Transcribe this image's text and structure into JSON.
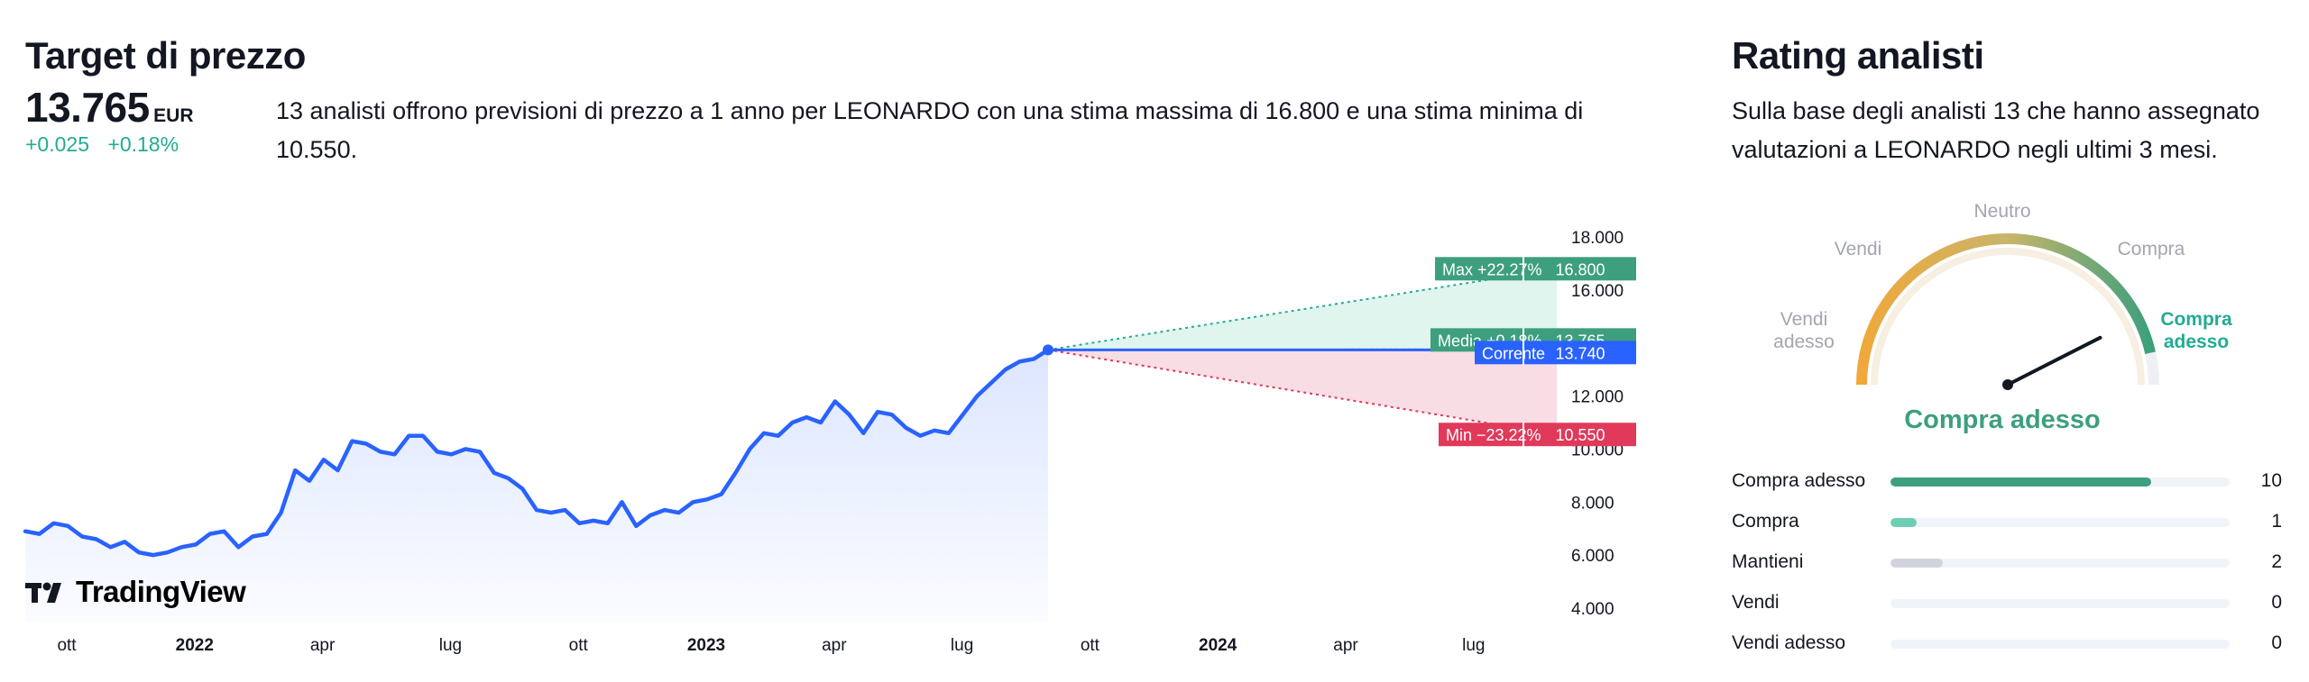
{
  "colors": {
    "green": "#22ab94",
    "green_dark": "#3d9f7d",
    "blue": "#2962ff",
    "red": "#e0395a",
    "grey": "#d1d4dc",
    "track": "#f0f3fa"
  },
  "target": {
    "title": "Target di prezzo",
    "price": "13.765",
    "currency": "EUR",
    "change_abs": "+0.025",
    "change_pct": "+0.18%",
    "description": "13 analisti offrono previsioni di prezzo a 1 anno per LEONARDO con una stima massima di 16.800 e una stima minima di 10.550."
  },
  "chart_data": {
    "type": "line",
    "y_range": [
      4.0,
      18.0
    ],
    "y_ticks": [
      "18.000",
      "16.000",
      "14.000",
      "12.000",
      "10.000",
      "8.000",
      "6.000",
      "4.000"
    ],
    "x_ticks": [
      {
        "label": "ott",
        "bold": false
      },
      {
        "label": "2022",
        "bold": true
      },
      {
        "label": "apr",
        "bold": false
      },
      {
        "label": "lug",
        "bold": false
      },
      {
        "label": "ott",
        "bold": false
      },
      {
        "label": "2023",
        "bold": true
      },
      {
        "label": "apr",
        "bold": false
      },
      {
        "label": "lug",
        "bold": false
      },
      {
        "label": "ott",
        "bold": false
      },
      {
        "label": "2024",
        "bold": true
      },
      {
        "label": "apr",
        "bold": false
      },
      {
        "label": "lug",
        "bold": false
      }
    ],
    "history_start": "2021-09",
    "history_end": "2023-09",
    "price_history": [
      6.9,
      6.8,
      7.2,
      7.1,
      6.7,
      6.6,
      6.3,
      6.5,
      6.1,
      6.0,
      6.1,
      6.3,
      6.4,
      6.8,
      6.9,
      6.3,
      6.7,
      6.8,
      7.6,
      9.2,
      8.8,
      9.6,
      9.2,
      10.3,
      10.2,
      9.9,
      9.8,
      10.5,
      10.5,
      9.9,
      9.8,
      10.0,
      9.9,
      9.1,
      8.9,
      8.5,
      7.7,
      7.6,
      7.7,
      7.2,
      7.3,
      7.2,
      8.0,
      7.1,
      7.5,
      7.7,
      7.6,
      8.0,
      8.1,
      8.3,
      9.1,
      10.0,
      10.6,
      10.5,
      11.0,
      11.2,
      11.0,
      11.8,
      11.3,
      10.6,
      11.4,
      11.3,
      10.8,
      10.5,
      10.7,
      10.6,
      11.3,
      12.0,
      12.5,
      13.0,
      13.3,
      13.4,
      13.74
    ],
    "current": 13.74,
    "max": 16.8,
    "avg": 13.765,
    "min": 10.55,
    "labels": {
      "max_text": "Max +22.27%",
      "max_value": "16.800",
      "avg_text": "Media +0.18%",
      "avg_value": "13.765",
      "cur_text": "Corrente",
      "cur_value": "13.740",
      "min_text": "Min −23.22%",
      "min_value": "10.550"
    }
  },
  "tradingview": {
    "logo_text": "TradingView"
  },
  "ratings": {
    "title": "Rating analisti",
    "description": "Sulla base degli analisti 13 che hanno assegnato valutazioni a LEONARDO negli ultimi 3 mesi.",
    "gauge_labels": {
      "strong_sell": "Vendi adesso",
      "sell": "Vendi",
      "neutral": "Neutro",
      "buy": "Compra",
      "strong_buy": "Compra adesso"
    },
    "needle_value": 0.85,
    "verdict": "Compra adesso",
    "items": [
      {
        "label": "Compra adesso",
        "count": "10",
        "fraction": 0.769,
        "color": "#3d9f7d"
      },
      {
        "label": "Compra",
        "count": "1",
        "fraction": 0.077,
        "color": "#6ccfb4"
      },
      {
        "label": "Mantieni",
        "count": "2",
        "fraction": 0.154,
        "color": "#d1d4dc"
      },
      {
        "label": "Vendi",
        "count": "0",
        "fraction": 0,
        "color": "#e0395a"
      },
      {
        "label": "Vendi adesso",
        "count": "0",
        "fraction": 0,
        "color": "#e0395a"
      }
    ]
  }
}
